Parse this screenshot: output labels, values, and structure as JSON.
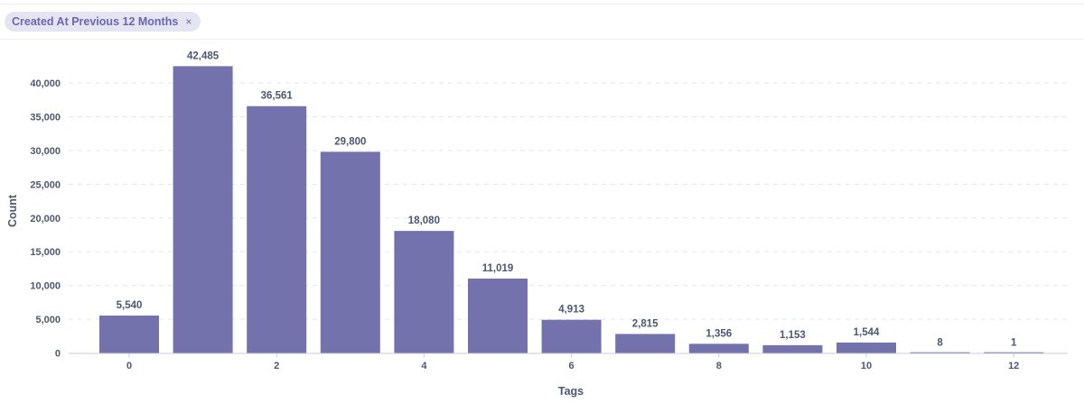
{
  "filter": {
    "label": "Created At Previous 12 Months",
    "close_icon": "close-icon",
    "close_glyph": "×"
  },
  "colors": {
    "bar": "#7372ad",
    "pill_bg": "#e5e4f3",
    "pill_text": "#6b66b0",
    "axis_text": "#4c5770",
    "grid": "#e3e6ec"
  },
  "chart_data": {
    "type": "bar",
    "x": [
      0,
      1,
      2,
      3,
      4,
      5,
      6,
      7,
      8,
      9,
      10,
      11,
      12
    ],
    "values": [
      5540,
      42485,
      36561,
      29800,
      18080,
      11019,
      4913,
      2815,
      1356,
      1153,
      1544,
      8,
      1
    ],
    "data_labels": [
      "5,540",
      "42,485",
      "36,561",
      "29,800",
      "18,080",
      "11,019",
      "4,913",
      "2,815",
      "1,356",
      "1,153",
      "1,544",
      "8",
      "1"
    ],
    "xlabel": "Tags",
    "ylabel": "Count",
    "xticks": [
      0,
      2,
      4,
      6,
      8,
      10,
      12
    ],
    "xtick_labels": [
      "0",
      "2",
      "4",
      "6",
      "8",
      "10",
      "12"
    ],
    "yticks": [
      0,
      5000,
      10000,
      15000,
      20000,
      25000,
      30000,
      35000,
      40000
    ],
    "ytick_labels": [
      "0",
      "5,000",
      "10,000",
      "15,000",
      "20,000",
      "25,000",
      "30,000",
      "35,000",
      "40,000"
    ],
    "ylim": [
      0,
      40000
    ],
    "xlim": [
      -1,
      13
    ],
    "grid": true,
    "legend": "none"
  }
}
